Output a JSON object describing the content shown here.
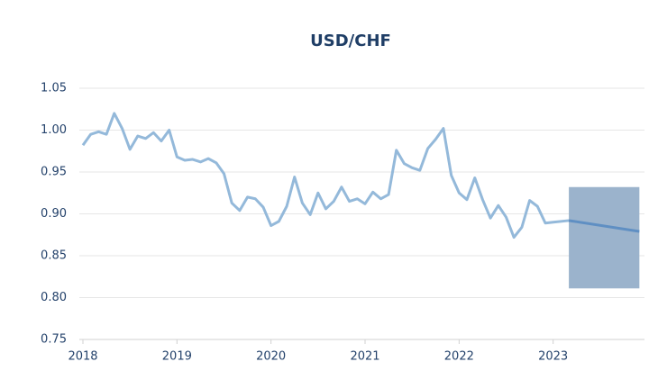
{
  "chart_data": {
    "type": "line",
    "title": "USD/CHF",
    "x": [
      2018,
      2018.083,
      2018.167,
      2018.25,
      2018.333,
      2018.417,
      2018.5,
      2018.583,
      2018.667,
      2018.75,
      2018.833,
      2018.917,
      2019,
      2019.083,
      2019.167,
      2019.25,
      2019.333,
      2019.417,
      2019.5,
      2019.583,
      2019.667,
      2019.75,
      2019.833,
      2019.917,
      2020,
      2020.083,
      2020.167,
      2020.25,
      2020.333,
      2020.417,
      2020.5,
      2020.583,
      2020.667,
      2020.75,
      2020.833,
      2020.917,
      2021,
      2021.083,
      2021.167,
      2021.25,
      2021.333,
      2021.417,
      2021.5,
      2021.583,
      2021.667,
      2021.75,
      2021.833,
      2021.917,
      2022,
      2022.083,
      2022.167,
      2022.25,
      2022.333,
      2022.417,
      2022.5,
      2022.583,
      2022.667,
      2022.75,
      2022.833,
      2022.917,
      2023,
      2023.167
    ],
    "series": [
      {
        "color": "#94b9da",
        "values": [
          0.982,
          0.995,
          0.998,
          0.995,
          1.02,
          1.002,
          0.977,
          0.993,
          0.99,
          0.997,
          0.987,
          1.0,
          0.968,
          0.964,
          0.965,
          0.962,
          0.966,
          0.961,
          0.948,
          0.913,
          0.904,
          0.92,
          0.918,
          0.908,
          0.886,
          0.891,
          0.909,
          0.944,
          0.913,
          0.899,
          0.925,
          0.906,
          0.915,
          0.932,
          0.915,
          0.918,
          0.912,
          0.926,
          0.918,
          0.923,
          0.976,
          0.96,
          0.955,
          0.952,
          0.978,
          0.989,
          1.002,
          0.946,
          0.925,
          0.917,
          0.943,
          0.917,
          0.895,
          0.91,
          0.896,
          0.872,
          0.884,
          0.916,
          0.909,
          0.889,
          0.89,
          0.892
        ]
      },
      {
        "color": "#5f8fc3",
        "x": [
          2023.167,
          2023.917
        ],
        "values": [
          0.892,
          0.879
        ]
      }
    ],
    "forecast_range": {
      "color": "#9bb3cc",
      "x": [
        2023.167,
        2023.917
      ],
      "low": 0.811,
      "high": 0.932
    },
    "xlim": [
      2018,
      2024
    ],
    "xticks": [
      2018,
      2019,
      2020,
      2021,
      2022,
      2023
    ],
    "ylim": [
      0.75,
      1.05
    ],
    "yticks": [
      {
        "value": 0.75,
        "label": "0.75"
      },
      {
        "value": 0.8,
        "label": "0.80"
      },
      {
        "value": 0.85,
        "label": "0.85"
      },
      {
        "value": 0.9,
        "label": "0.90"
      },
      {
        "value": 0.95,
        "label": "0.95"
      },
      {
        "value": 1.0,
        "label": "1.00"
      },
      {
        "value": 1.05,
        "label": "1.05"
      }
    ],
    "grid": true
  }
}
